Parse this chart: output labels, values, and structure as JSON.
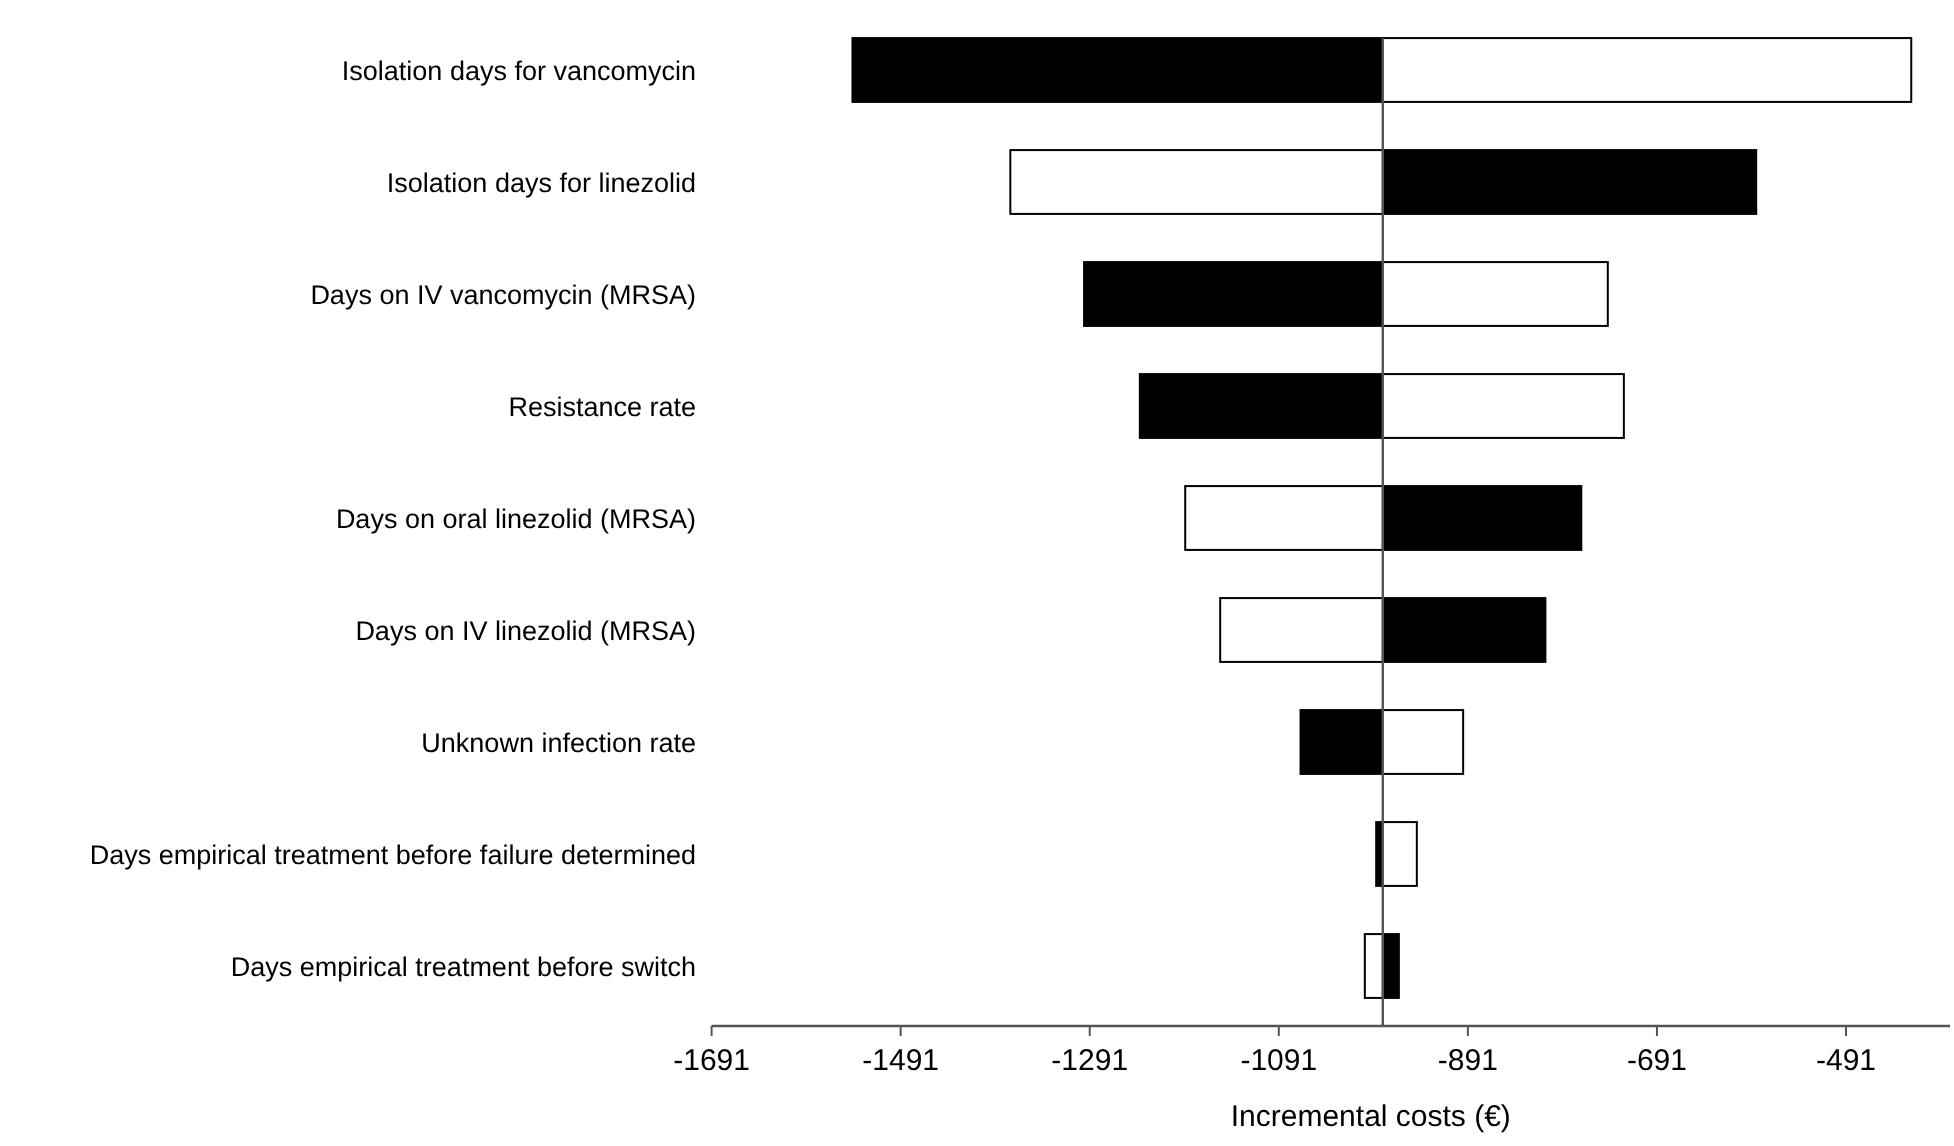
{
  "chart_data": {
    "type": "bar",
    "orientation": "horizontal",
    "xlabel": "Incremental costs (€)",
    "categories": [
      "Isolation days for vancomycin",
      "Isolation days for linezolid",
      "Days on IV vancomycin (MRSA)",
      "Resistance rate",
      "Days on oral linezolid (MRSA)",
      "Days on IV linezolid (MRSA)",
      "Unknown infection rate",
      "Days empirical treatment before failure determined",
      "Days empirical treatment before switch"
    ],
    "series": [
      {
        "color": "#000000",
        "base": [
          -981,
          -981,
          -981,
          -981,
          -981,
          -981,
          -981,
          -981,
          -981
        ],
        "values": [
          -561,
          395,
          -316,
          -257,
          210,
          172,
          -87,
          -7,
          17
        ]
      },
      {
        "color": "#ffffff",
        "base": [
          -981,
          -981,
          -981,
          -981,
          -981,
          -981,
          -981,
          -981,
          -981
        ],
        "values": [
          559,
          -394,
          238,
          255,
          -209,
          -172,
          85,
          36,
          -19
        ]
      }
    ],
    "xlim": [
      -1691,
      -381
    ],
    "xticks": [
      -1691,
      -1491,
      -1291,
      -1091,
      -891,
      -691,
      -491
    ],
    "ref_lines": [
      {
        "axis": "x",
        "value": -981,
        "color": "#555555"
      }
    ],
    "grid": false
  }
}
